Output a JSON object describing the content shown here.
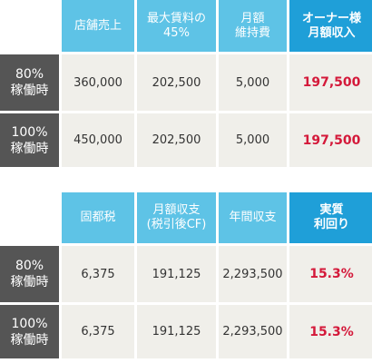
{
  "colors": {
    "header": "#5ec3e6",
    "header_highlight": "#1f9fd8",
    "row_label": "#555555",
    "cell": "#f0efea",
    "accent_text": "#d4193a"
  },
  "income_table": {
    "headers": [
      "店舗売上",
      "最大賃料の\n45%",
      "月額\n維持費",
      "オーナー様\n月額収入"
    ],
    "rows": [
      {
        "label": "80%\n稼働時",
        "values": [
          "360,000",
          "202,500",
          "5,000",
          "197,500"
        ]
      },
      {
        "label": "100%\n稼働時",
        "values": [
          "450,000",
          "202,500",
          "5,000",
          "197,500"
        ]
      }
    ]
  },
  "yield_table": {
    "headers": [
      "固都税",
      "月額収支\n(税引後CF)",
      "年間収支",
      "実質\n利回り"
    ],
    "rows": [
      {
        "label": "80%\n稼働時",
        "values": [
          "6,375",
          "191,125",
          "2,293,500",
          "15.3%"
        ]
      },
      {
        "label": "100%\n稼働時",
        "values": [
          "6,375",
          "191,125",
          "2,293,500",
          "15.3%"
        ]
      }
    ]
  }
}
